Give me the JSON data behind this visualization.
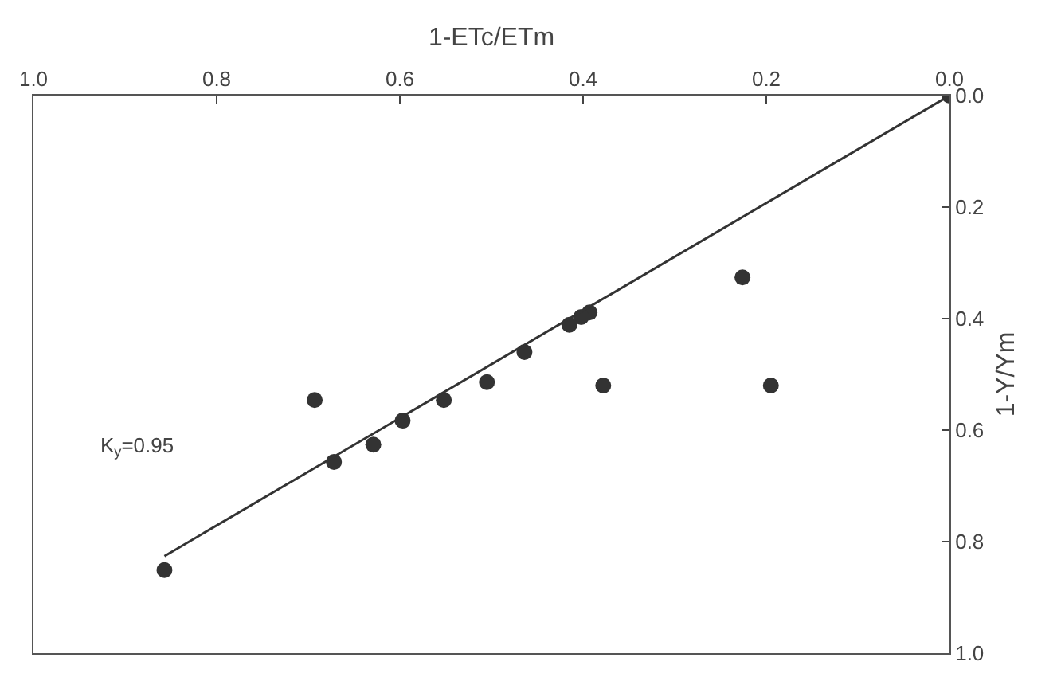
{
  "chart_data": {
    "type": "scatter",
    "xlabel": "1-ETc/ETm",
    "ylabel": "1-Y/Ym",
    "annotations": [
      "K$_{y}$=0.95"
    ],
    "series": [
      {
        "marker": "circle",
        "color": "#333333",
        "x": [
          0.0,
          0.226,
          0.195,
          0.378,
          0.393,
          0.402,
          0.415,
          0.464,
          0.505,
          0.552,
          0.597,
          0.629,
          0.672,
          0.693,
          0.857
        ],
        "values": [
          0.0,
          0.326,
          0.52,
          0.52,
          0.389,
          0.397,
          0.411,
          0.46,
          0.514,
          0.546,
          0.583,
          0.626,
          0.657,
          0.546,
          0.851
        ]
      },
      {
        "type": "line",
        "marker": "none",
        "color": "#333333",
        "x": [
          0.857,
          0.0
        ],
        "values": [
          0.826,
          0.0
        ]
      }
    ],
    "xlim": [
      1.0,
      0.0
    ],
    "xticks": [
      {
        "value": 1.0,
        "label": "1.0"
      },
      {
        "value": 0.8,
        "label": "0.8"
      },
      {
        "value": 0.6,
        "label": "0.6"
      },
      {
        "value": 0.4,
        "label": "0.4"
      },
      {
        "value": 0.2,
        "label": "0.2"
      },
      {
        "value": 0.0,
        "label": "0.0"
      }
    ],
    "ylim": [
      1.0,
      0.0
    ],
    "yticks": [
      {
        "value": 0.0,
        "label": "0.0"
      },
      {
        "value": 0.2,
        "label": "0.2"
      },
      {
        "value": 0.4,
        "label": "0.4"
      },
      {
        "value": 0.6,
        "label": "0.6"
      },
      {
        "value": 0.8,
        "label": "0.8"
      },
      {
        "value": 1.0,
        "label": "1.0"
      }
    ],
    "line_style": "solid"
  }
}
